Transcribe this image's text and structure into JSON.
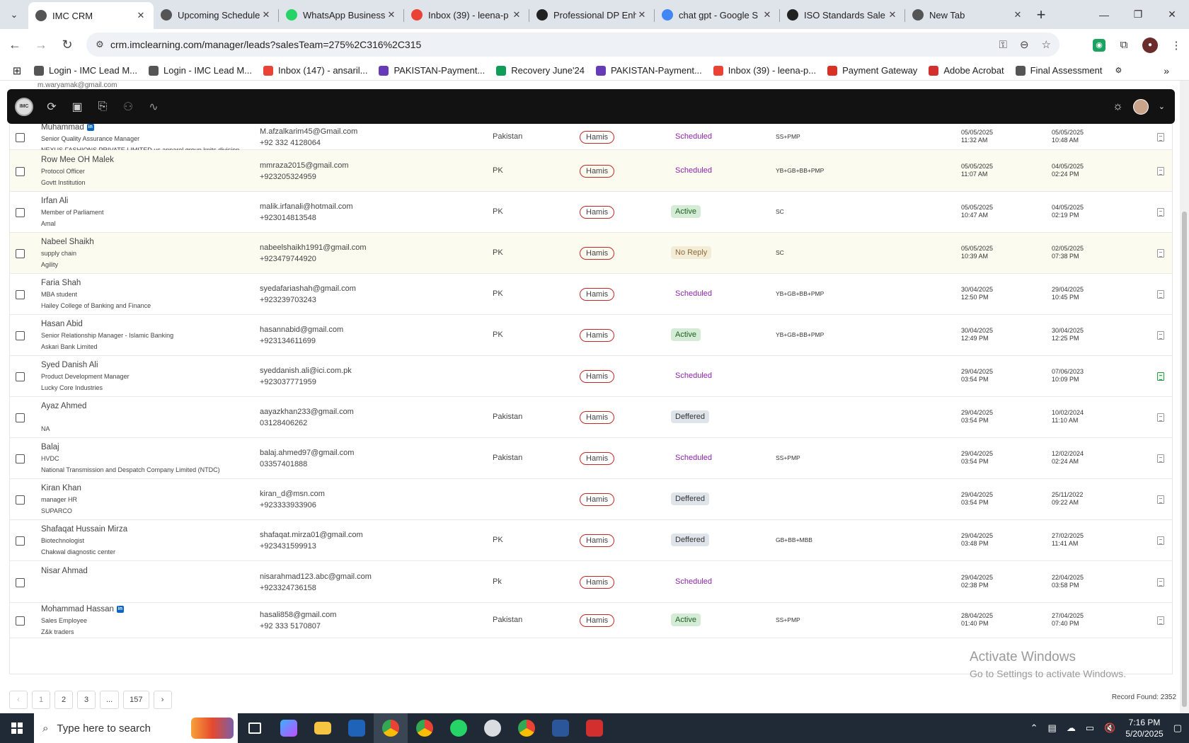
{
  "browser": {
    "tabs": [
      {
        "title": "IMC CRM",
        "color": "#555",
        "active": true
      },
      {
        "title": "Upcoming Schedule",
        "color": "#555"
      },
      {
        "title": "WhatsApp Business",
        "color": "#25d366"
      },
      {
        "title": "Inbox (39) - leena-p",
        "color": "#ea4335"
      },
      {
        "title": "Professional DP Enh",
        "color": "#222"
      },
      {
        "title": "chat gpt - Google S",
        "color": "#4285f4"
      },
      {
        "title": "ISO Standards Sale",
        "color": "#222"
      },
      {
        "title": "New Tab",
        "color": "#555"
      }
    ],
    "url": "crm.imclearning.com/manager/leads?salesTeam=275%2C316%2C315",
    "bookmarks": [
      {
        "label": "Login - IMC Lead M...",
        "color": "#555"
      },
      {
        "label": "Login - IMC Lead M...",
        "color": "#555"
      },
      {
        "label": "Inbox (147) - ansaril...",
        "color": "#ea4335"
      },
      {
        "label": "PAKISTAN-Payment...",
        "color": "#673ab7"
      },
      {
        "label": "Recovery June'24",
        "color": "#0f9d58"
      },
      {
        "label": "PAKISTAN-Payment...",
        "color": "#673ab7"
      },
      {
        "label": "Inbox (39) - leena-p...",
        "color": "#ea4335"
      },
      {
        "label": "Payment Gateway",
        "color": "#d93025"
      },
      {
        "label": "Adobe Acrobat",
        "color": "#d32f2f"
      },
      {
        "label": "Final Assessment",
        "color": "#555"
      }
    ]
  },
  "partial_row": "m.waryamak@gmail.com",
  "leads": [
    {
      "name": "Muhammad",
      "linkedin": true,
      "title": "Senior Quality Assurance Manager",
      "company": "NEXUS FASHIONS PRIVATE LIMITED us apparel group knits division",
      "email": "M.afzalkarim45@Gmail.com",
      "phone": "+92 332 4128064",
      "country": "Pakistan",
      "owner": "Hamis",
      "status": "Scheduled",
      "course": "SS+PMP",
      "d1": "05/05/2025",
      "t1": "11:32 AM",
      "d2": "05/05/2025",
      "t2": "10:48 AM",
      "alt": false,
      "doc": "gray"
    },
    {
      "name": "Row Mee OH Malek",
      "linkedin": false,
      "title": "Protocol Officer",
      "company": "Govtt Institution",
      "email": "mmraza2015@gmail.com",
      "phone": "+923205324959",
      "country": "PK",
      "owner": "Hamis",
      "status": "Scheduled",
      "course": "YB+GB+BB+PMP",
      "d1": "05/05/2025",
      "t1": "11:07 AM",
      "d2": "04/05/2025",
      "t2": "02:24 PM",
      "alt": true,
      "doc": "gray"
    },
    {
      "name": "Irfan Ali",
      "linkedin": false,
      "title": "Member of Parliament",
      "company": "Amal",
      "email": "malik.irfanali@hotmail.com",
      "phone": "+923014813548",
      "country": "PK",
      "owner": "Hamis",
      "status": "Active",
      "course": "SC",
      "d1": "05/05/2025",
      "t1": "10:47 AM",
      "d2": "04/05/2025",
      "t2": "02:19 PM",
      "alt": false,
      "doc": "gray"
    },
    {
      "name": "Nabeel Shaikh",
      "linkedin": false,
      "title": "supply chain",
      "company": "Agility",
      "email": "nabeelshaikh1991@gmail.com",
      "phone": "+923479744920",
      "country": "PK",
      "owner": "Hamis",
      "status": "No Reply",
      "course": "SC",
      "d1": "05/05/2025",
      "t1": "10:39 AM",
      "d2": "02/05/2025",
      "t2": "07:38 PM",
      "alt": true,
      "doc": "gray"
    },
    {
      "name": "Faria Shah",
      "linkedin": false,
      "title": "MBA student",
      "company": "Hailey College of Banking and Finance",
      "email": "syedafariashah@gmail.com",
      "phone": "+923239703243",
      "country": "PK",
      "owner": "Hamis",
      "status": "Scheduled",
      "course": "YB+GB+BB+PMP",
      "d1": "30/04/2025",
      "t1": "12:50 PM",
      "d2": "29/04/2025",
      "t2": "10:45 PM",
      "alt": false,
      "doc": "gray"
    },
    {
      "name": "Hasan Abid",
      "linkedin": false,
      "title": "Senior Relationship Manager - Islamic Banking",
      "company": "Askari Bank Limited",
      "email": "hasannabid@gmail.com",
      "phone": "+923134611699",
      "country": "PK",
      "owner": "Hamis",
      "status": "Active",
      "course": "YB+GB+BB+PMP",
      "d1": "30/04/2025",
      "t1": "12:49 PM",
      "d2": "30/04/2025",
      "t2": "12:25 PM",
      "alt": false,
      "doc": "gray"
    },
    {
      "name": "Syed Danish Ali",
      "linkedin": false,
      "title": "Product Development Manager",
      "company": "Lucky Core Industries",
      "email": "syeddanish.ali@ici.com.pk",
      "phone": "+923037771959",
      "country": "",
      "owner": "Hamis",
      "status": "Scheduled",
      "course": "",
      "d1": "29/04/2025",
      "t1": "03:54 PM",
      "d2": "07/06/2023",
      "t2": "10:09 PM",
      "alt": false,
      "doc": "green"
    },
    {
      "name": "Ayaz Ahmed",
      "linkedin": false,
      "title": "",
      "company": "NA",
      "email": "aayazkhan233@gmail.com",
      "phone": "03128406262",
      "country": "Pakistan",
      "owner": "Hamis",
      "status": "Deffered",
      "course": "",
      "d1": "29/04/2025",
      "t1": "03:54 PM",
      "d2": "10/02/2024",
      "t2": "11:10 AM",
      "alt": false,
      "doc": "gray"
    },
    {
      "name": "Balaj",
      "linkedin": false,
      "title": "HVDC",
      "company": "National Transmission and Despatch Company Limited (NTDC)",
      "email": "balaj.ahmed97@gmail.com",
      "phone": "03357401888",
      "country": "Pakistan",
      "owner": "Hamis",
      "status": "Scheduled",
      "course": "SS+PMP",
      "d1": "29/04/2025",
      "t1": "03:54 PM",
      "d2": "12/02/2024",
      "t2": "02:24 AM",
      "alt": false,
      "doc": "gray"
    },
    {
      "name": "Kiran Khan",
      "linkedin": false,
      "title": "manager HR",
      "company": "SUPARCO",
      "email": "kiran_d@msn.com",
      "phone": "+923333933906",
      "country": "",
      "owner": "Hamis",
      "status": "Deffered",
      "course": "",
      "d1": "29/04/2025",
      "t1": "03:54 PM",
      "d2": "25/11/2022",
      "t2": "09:22 AM",
      "alt": false,
      "doc": "gray"
    },
    {
      "name": "Shafaqat Hussain Mirza",
      "linkedin": false,
      "title": "Biotechnologist",
      "company": "Chakwal diagnostic center",
      "email": "shafaqat.mirza01@gmail.com",
      "phone": "+923431599913",
      "country": "PK",
      "owner": "Hamis",
      "status": "Deffered",
      "course": "GB+BB+MBB",
      "d1": "29/04/2025",
      "t1": "03:48 PM",
      "d2": "27/02/2025",
      "t2": "11:41 AM",
      "alt": false,
      "doc": "gray"
    },
    {
      "name": "Nisar Ahmad",
      "linkedin": false,
      "title": "",
      "company": "",
      "email": "nisarahmad123.abc@gmail.com",
      "phone": "+923324736158",
      "country": "Pk",
      "owner": "Hamis",
      "status": "Scheduled",
      "course": "",
      "d1": "29/04/2025",
      "t1": "02:38 PM",
      "d2": "22/04/2025",
      "t2": "03:58 PM",
      "alt": false,
      "doc": "gray"
    },
    {
      "name": "Mohammad Hassan",
      "linkedin": true,
      "title": "Sales Employee",
      "company": "Z&k traders",
      "email": "hasali858@gmail.com",
      "phone": "+92 333 5170807",
      "country": "Pakistan",
      "owner": "Hamis",
      "status": "Active",
      "course": "SS+PMP",
      "d1": "28/04/2025",
      "t1": "01:40 PM",
      "d2": "27/04/2025",
      "t2": "07:40 PM",
      "alt": false,
      "doc": "gray"
    }
  ],
  "pagination": {
    "prev": "‹",
    "pages": [
      "1",
      "2",
      "3",
      "...",
      "157"
    ],
    "next": "›",
    "current": "1"
  },
  "record_found": "Record Found: 2352",
  "watermark": {
    "line1": "Activate Windows",
    "line2": "Go to Settings to activate Windows."
  },
  "taskbar": {
    "search_placeholder": "Type here to search",
    "time": "7:16 PM",
    "date": "5/20/2025"
  }
}
